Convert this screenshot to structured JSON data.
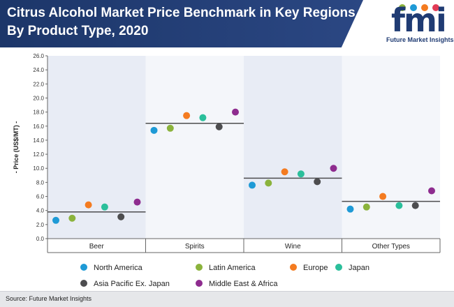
{
  "header": {
    "title": "Citrus Alcohol Market Price Benchmark in Key Regions By Product Type, 2020"
  },
  "logo": {
    "text": "fmi",
    "tagline": "Future Market Insights"
  },
  "footer": {
    "source": "Source: Future Market Insights"
  },
  "colors": {
    "header_bg": "#1f3b73",
    "north_america": "#1e9ad6",
    "latin_america": "#8bb33c",
    "europe": "#f47b20",
    "japan": "#2bbf9b",
    "asia_pacific": "#4d4d4f",
    "mea": "#8e2c8f",
    "band_shade": "#e8ecf5",
    "benchmark_line": "#4d4d4f"
  },
  "chart_data": {
    "type": "scatter",
    "ylabel": "- Price (US$/MT) -",
    "ylim": [
      0,
      26
    ],
    "yticks": [
      "0.0",
      "2.0",
      "4.0",
      "6.0",
      "8.0",
      "10.0",
      "12.0",
      "14.0",
      "16.0",
      "18.0",
      "20.0",
      "22.0",
      "24.0",
      "26.0"
    ],
    "categories": [
      "Beer",
      "Spirits",
      "Wine",
      "Other Types"
    ],
    "benchmarks": [
      3.8,
      16.4,
      8.6,
      5.3
    ],
    "series": [
      {
        "name": "North America",
        "color": "#1e9ad6",
        "values": [
          2.6,
          15.4,
          7.6,
          4.2
        ]
      },
      {
        "name": "Latin America",
        "color": "#8bb33c",
        "values": [
          2.9,
          15.7,
          7.9,
          4.5
        ]
      },
      {
        "name": "Europe",
        "color": "#f47b20",
        "values": [
          4.8,
          17.5,
          9.5,
          6.0
        ]
      },
      {
        "name": "Japan",
        "color": "#2bbf9b",
        "values": [
          4.5,
          17.2,
          9.2,
          4.7
        ]
      },
      {
        "name": "Asia Pacific Ex. Japan",
        "color": "#4d4d4f",
        "values": [
          3.1,
          15.9,
          8.1,
          4.7
        ]
      },
      {
        "name": "Middle East & Africa",
        "color": "#8e2c8f",
        "values": [
          5.2,
          18.0,
          10.0,
          6.8
        ]
      }
    ],
    "legend_position": "bottom",
    "grid": false
  }
}
